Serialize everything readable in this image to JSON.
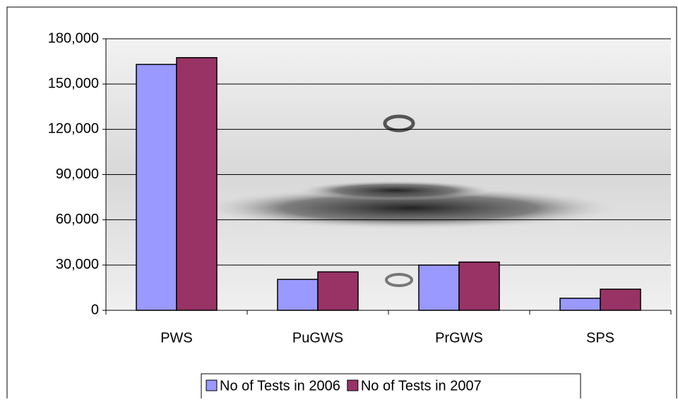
{
  "chart_data": {
    "type": "bar",
    "categories": [
      "PWS",
      "PuGWS",
      "PrGWS",
      "SPS"
    ],
    "series": [
      {
        "name": "No of Tests in 2006",
        "color": "#9999ff",
        "values": [
          163000,
          20500,
          30000,
          8000
        ]
      },
      {
        "name": "No of Tests in 2007",
        "color": "#993366",
        "values": [
          167500,
          25500,
          32000,
          14000
        ]
      }
    ],
    "ylim": [
      0,
      180000
    ],
    "yticks": [
      0,
      {
        "value": 30000,
        "label": "30,000"
      },
      {
        "value": 60000,
        "label": "60,000"
      },
      {
        "value": 90000,
        "label": "90,000"
      },
      {
        "value": 120000,
        "label": "120,000"
      },
      {
        "value": 150000,
        "label": "150,000"
      },
      {
        "value": 180000,
        "label": "180,000"
      }
    ],
    "grid": true,
    "legend": "bottom"
  }
}
